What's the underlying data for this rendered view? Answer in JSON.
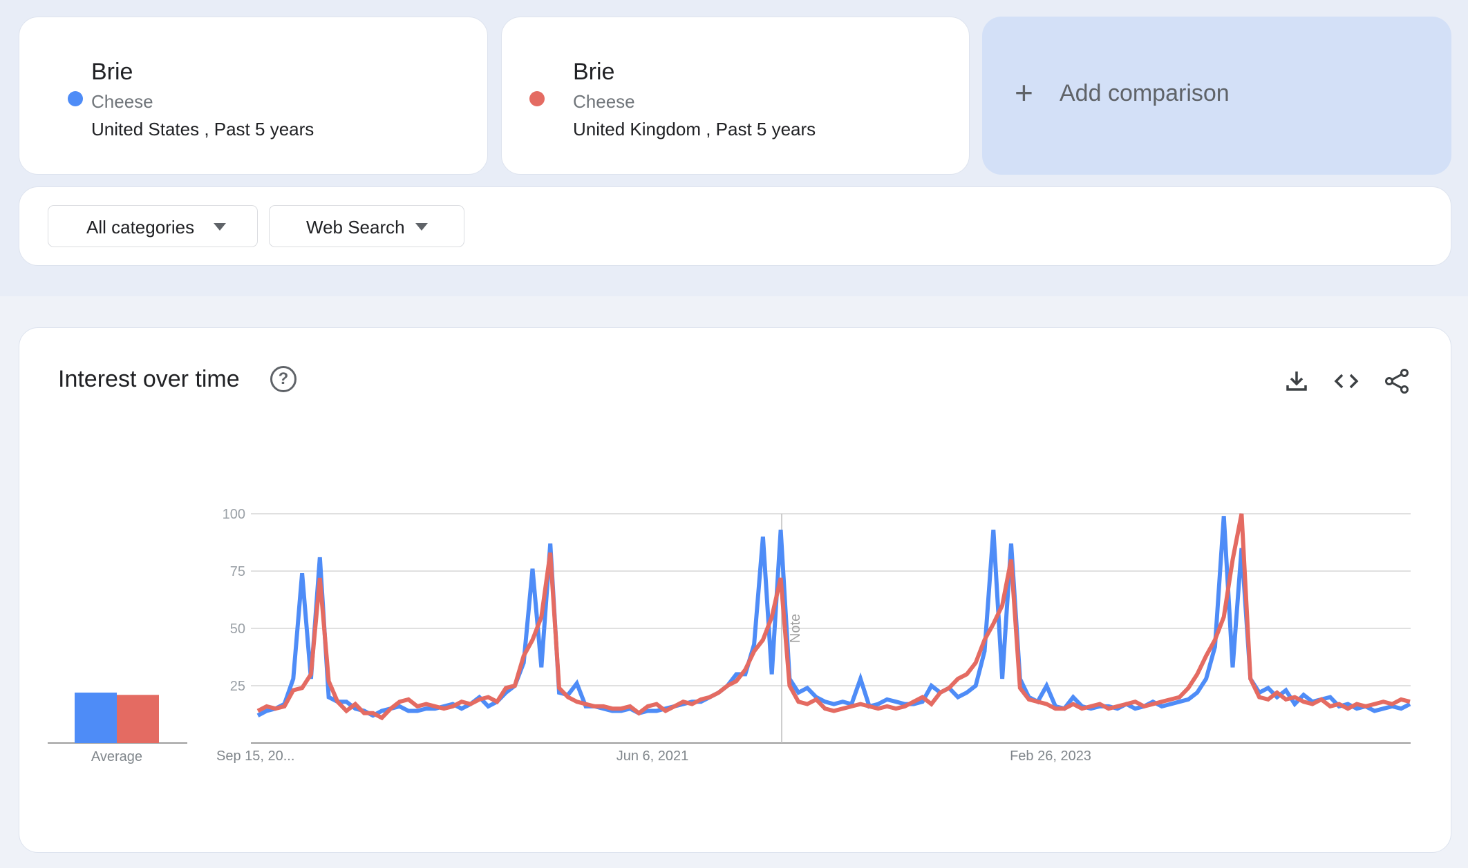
{
  "comparisons": [
    {
      "term": "Brie",
      "category": "Cheese",
      "meta": "United States , Past 5 years",
      "color": "#4e8cf7"
    },
    {
      "term": "Brie",
      "category": "Cheese",
      "meta": "United Kingdom , Past 5 years",
      "color": "#e46b62"
    }
  ],
  "add_comparison": {
    "icon": "plus-icon",
    "label": "Add comparison"
  },
  "filters": {
    "category": "All categories",
    "search_type": "Web Search"
  },
  "panel": {
    "title": "Interest over time",
    "help_icon": "?",
    "actions": [
      "download-icon",
      "embed-code-icon",
      "share-icon"
    ]
  },
  "chart_data": {
    "type": "line",
    "ylim": [
      0,
      100
    ],
    "y_ticks": [
      "25",
      "50",
      "75",
      "100"
    ],
    "x_tick_labels": [
      "Sep 15, 20...",
      "Jun 6, 2021",
      "Feb 26, 2023"
    ],
    "note_label": "Note",
    "grid": true,
    "average": {
      "label": "Average",
      "values": [
        22,
        21
      ]
    },
    "series": [
      {
        "color": "#4e8cf7",
        "values": [
          12,
          14,
          15,
          17,
          28,
          74,
          28,
          81,
          20,
          18,
          18,
          15,
          14,
          12,
          14,
          15,
          16,
          14,
          14,
          15,
          15,
          16,
          17,
          15,
          17,
          20,
          16,
          18,
          22,
          25,
          35,
          76,
          33,
          87,
          22,
          21,
          26,
          16,
          16,
          15,
          14,
          14,
          15,
          13,
          14,
          14,
          15,
          16,
          17,
          18,
          18,
          20,
          22,
          25,
          30,
          30,
          43,
          90,
          30,
          93,
          28,
          22,
          24,
          20,
          18,
          17,
          18,
          17,
          28,
          16,
          17,
          19,
          18,
          17,
          17,
          18,
          25,
          22,
          24,
          20,
          22,
          25,
          40,
          93,
          28,
          87,
          28,
          20,
          18,
          25,
          16,
          15,
          20,
          16,
          15,
          16,
          16,
          15,
          17,
          15,
          16,
          18,
          16,
          17,
          18,
          19,
          22,
          28,
          42,
          99,
          33,
          85,
          28,
          22,
          24,
          20,
          23,
          17,
          21,
          18,
          19,
          20,
          16,
          17,
          15,
          16,
          14,
          15,
          16,
          15,
          17
        ]
      },
      {
        "color": "#e46b62",
        "values": [
          14,
          16,
          15,
          16,
          23,
          24,
          30,
          72,
          27,
          18,
          14,
          17,
          13,
          13,
          11,
          15,
          18,
          19,
          16,
          17,
          16,
          15,
          16,
          18,
          17,
          19,
          20,
          18,
          24,
          25,
          38,
          45,
          55,
          83,
          24,
          20,
          18,
          17,
          16,
          16,
          15,
          15,
          16,
          13,
          16,
          17,
          14,
          16,
          18,
          17,
          19,
          20,
          22,
          25,
          27,
          32,
          40,
          45,
          55,
          72,
          25,
          18,
          17,
          19,
          15,
          14,
          15,
          16,
          17,
          16,
          15,
          16,
          15,
          16,
          18,
          20,
          17,
          22,
          24,
          28,
          30,
          35,
          45,
          52,
          60,
          80,
          24,
          19,
          18,
          17,
          15,
          15,
          17,
          15,
          16,
          17,
          15,
          16,
          17,
          18,
          16,
          17,
          18,
          19,
          20,
          24,
          30,
          38,
          45,
          55,
          80,
          100,
          28,
          20,
          19,
          22,
          19,
          20,
          18,
          17,
          19,
          16,
          17,
          15,
          17,
          16,
          17,
          18,
          17,
          19,
          18
        ]
      }
    ]
  }
}
